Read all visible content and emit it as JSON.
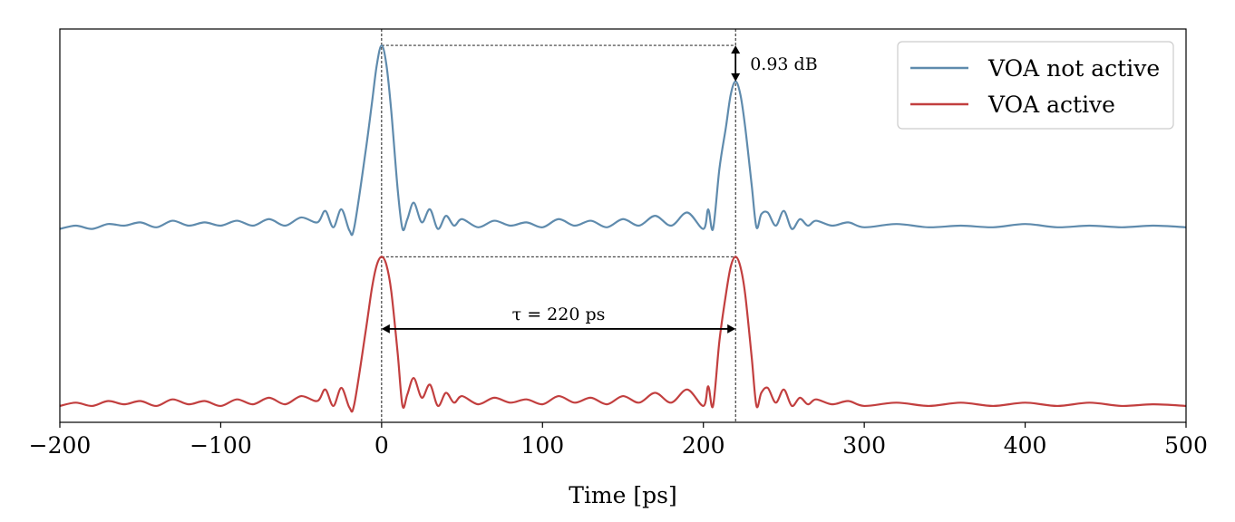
{
  "chart_data": {
    "type": "line",
    "title": "",
    "xlabel": "Time [ps]",
    "ylabel": "",
    "xlim": [
      -200,
      500
    ],
    "ylim": [
      -0.1,
      2.3
    ],
    "xticks": [
      -200,
      -100,
      0,
      100,
      200,
      300,
      400,
      500
    ],
    "xtick_labels": [
      "−200",
      "−100",
      "0",
      "100",
      "200",
      "300",
      "400",
      "500"
    ],
    "yticks_visible": false,
    "legend": {
      "placement": "top-right"
    },
    "pulse_center_1_ps": 0,
    "pulse_center_2_ps": 220,
    "series": [
      {
        "name": "VOA not active",
        "color": "#5f8bad",
        "baseline": 1.09,
        "peak_1": 2.2,
        "peak_2": 1.98,
        "x": [
          -200,
          -190,
          -180,
          -170,
          -160,
          -150,
          -140,
          -130,
          -120,
          -110,
          -100,
          -90,
          -80,
          -70,
          -60,
          -50,
          -40,
          -35,
          -30,
          -25,
          -20,
          -17,
          -10,
          -6,
          -3,
          0,
          3,
          6,
          10,
          13,
          16,
          20,
          25,
          30,
          35,
          40,
          45,
          50,
          60,
          70,
          80,
          90,
          100,
          110,
          120,
          130,
          140,
          150,
          160,
          170,
          180,
          190,
          200,
          203,
          206,
          210,
          214,
          217,
          220,
          223,
          226,
          230,
          233,
          236,
          240,
          245,
          250,
          255,
          260,
          265,
          270,
          280,
          290,
          300,
          320,
          340,
          360,
          380,
          400,
          420,
          440,
          460,
          480,
          500
        ],
        "y": [
          1.08,
          1.1,
          1.08,
          1.11,
          1.1,
          1.12,
          1.09,
          1.13,
          1.1,
          1.12,
          1.1,
          1.13,
          1.1,
          1.14,
          1.1,
          1.15,
          1.12,
          1.19,
          1.09,
          1.2,
          1.07,
          1.09,
          1.55,
          1.85,
          2.08,
          2.2,
          2.08,
          1.8,
          1.32,
          1.08,
          1.14,
          1.24,
          1.12,
          1.2,
          1.08,
          1.16,
          1.1,
          1.14,
          1.09,
          1.13,
          1.1,
          1.12,
          1.09,
          1.14,
          1.1,
          1.13,
          1.09,
          1.14,
          1.1,
          1.16,
          1.1,
          1.18,
          1.08,
          1.2,
          1.08,
          1.45,
          1.7,
          1.9,
          1.98,
          1.9,
          1.7,
          1.35,
          1.09,
          1.17,
          1.18,
          1.1,
          1.19,
          1.08,
          1.14,
          1.1,
          1.13,
          1.1,
          1.12,
          1.09,
          1.11,
          1.09,
          1.1,
          1.09,
          1.11,
          1.09,
          1.1,
          1.09,
          1.1,
          1.09
        ],
        "stroke_width": 2.2
      },
      {
        "name": "VOA active",
        "color": "#c23f3f",
        "baseline": 0.0,
        "peak_1": 0.91,
        "peak_2": 0.91,
        "x": [
          -200,
          -190,
          -180,
          -170,
          -160,
          -150,
          -140,
          -130,
          -120,
          -110,
          -100,
          -90,
          -80,
          -70,
          -60,
          -50,
          -40,
          -35,
          -30,
          -25,
          -20,
          -17,
          -10,
          -6,
          -3,
          0,
          3,
          6,
          10,
          13,
          16,
          20,
          25,
          30,
          35,
          40,
          45,
          50,
          60,
          70,
          80,
          90,
          100,
          110,
          120,
          130,
          140,
          150,
          160,
          170,
          180,
          190,
          200,
          203,
          206,
          210,
          214,
          217,
          220,
          223,
          226,
          230,
          233,
          236,
          240,
          245,
          250,
          255,
          260,
          265,
          270,
          280,
          290,
          300,
          320,
          340,
          360,
          380,
          400,
          420,
          440,
          460,
          480,
          500
        ],
        "y": [
          0.0,
          0.02,
          0.0,
          0.03,
          0.01,
          0.03,
          0.0,
          0.04,
          0.01,
          0.03,
          0.0,
          0.04,
          0.01,
          0.05,
          0.01,
          0.06,
          0.03,
          0.1,
          0.0,
          0.11,
          -0.01,
          0.01,
          0.45,
          0.72,
          0.86,
          0.91,
          0.86,
          0.7,
          0.32,
          0.0,
          0.07,
          0.17,
          0.05,
          0.13,
          0.0,
          0.08,
          0.02,
          0.06,
          0.01,
          0.05,
          0.02,
          0.04,
          0.01,
          0.06,
          0.02,
          0.05,
          0.01,
          0.06,
          0.02,
          0.08,
          0.02,
          0.1,
          0.0,
          0.12,
          0.0,
          0.4,
          0.68,
          0.85,
          0.91,
          0.85,
          0.68,
          0.3,
          0.0,
          0.08,
          0.11,
          0.02,
          0.1,
          0.0,
          0.05,
          0.01,
          0.04,
          0.01,
          0.03,
          0.0,
          0.02,
          0.0,
          0.02,
          0.0,
          0.02,
          0.0,
          0.02,
          0.0,
          0.01,
          0.0
        ],
        "stroke_width": 2.2
      }
    ],
    "annotations": [
      {
        "kind": "attenuation-arrow",
        "text": "0.93 dB",
        "x_ps": 220,
        "y_from": 2.2,
        "y_to": 1.98
      },
      {
        "kind": "delay-arrow",
        "text": "τ = 220 ps",
        "x_from_ps": 0,
        "x_to_ps": 220,
        "y": 0.47
      },
      {
        "kind": "guide-lines",
        "vertical_at_ps": [
          0,
          220
        ],
        "horizontal_levels": [
          2.2,
          0.91
        ]
      }
    ]
  }
}
